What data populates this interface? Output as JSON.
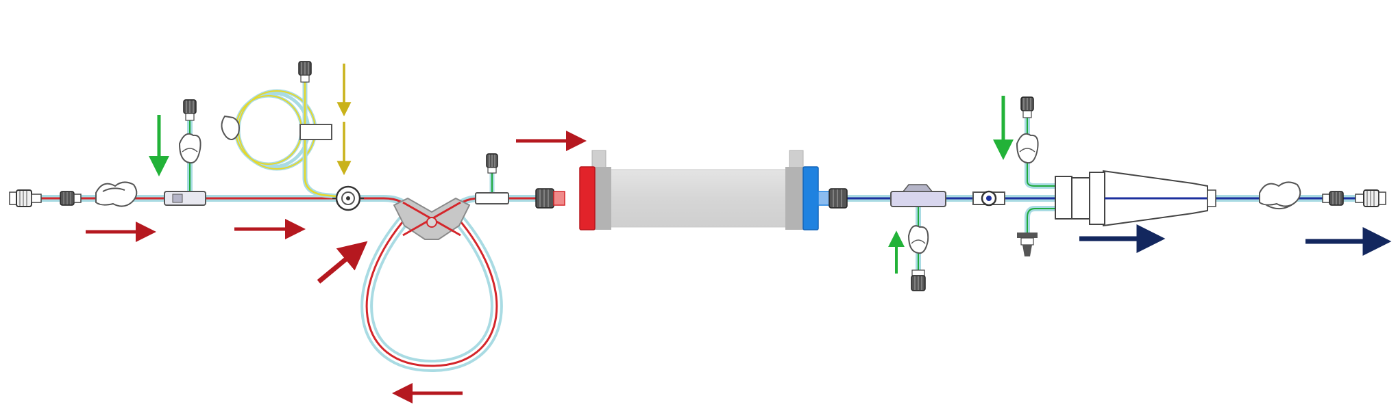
{
  "diagram": {
    "type": "extracorporeal blood tubing set schematic",
    "colors": {
      "arterial": "#d4262b",
      "venous": "#1c2f9e",
      "tube_outer": "#a9dbe3",
      "infusion": "#e6d82a",
      "infusion_line": "#1faa3c",
      "arrow_red": "#b5181f",
      "arrow_green": "#22b238",
      "arrow_yellow": "#c9b21a",
      "arrow_navy": "#13275e",
      "dialyzer_body": "#d8d8d8",
      "dialyzer_cap": "#b3b3b3",
      "arterial_header": "#e2232a",
      "venous_header": "#1f82e0",
      "connector": "#3a3a3a"
    },
    "dialyzer": {
      "label_left": "",
      "label_right": ""
    },
    "flow_arrows": [
      {
        "name": "arterial-inflow-arrow-1",
        "color": "red",
        "direction": "right"
      },
      {
        "name": "arterial-inflow-arrow-2",
        "color": "red",
        "direction": "right"
      },
      {
        "name": "pump-entry-arrow",
        "color": "red",
        "direction": "up-right"
      },
      {
        "name": "pump-loop-arrow",
        "color": "red",
        "direction": "left"
      },
      {
        "name": "dialyzer-inflow-arrow",
        "color": "red",
        "direction": "right"
      },
      {
        "name": "heparin-arrow",
        "color": "yellow",
        "direction": "down"
      },
      {
        "name": "arterial-infusion-arrow",
        "color": "green",
        "direction": "down"
      },
      {
        "name": "venous-infusion-arrow",
        "color": "green",
        "direction": "down"
      },
      {
        "name": "venous-sample-arrow",
        "color": "green",
        "direction": "up"
      },
      {
        "name": "venous-outflow-arrow-1",
        "color": "navy",
        "direction": "right"
      },
      {
        "name": "venous-outflow-arrow-2",
        "color": "navy",
        "direction": "right"
      }
    ],
    "icons": [
      "luer-connector-icon",
      "roller-clamp-icon",
      "injection-port-icon",
      "pressure-pod-icon",
      "pump-segment-icon",
      "heparin-coil-icon",
      "dialyzer-icon",
      "drip-chamber-icon",
      "transducer-protector-icon",
      "pinch-clamp-icon",
      "t-connector-icon"
    ]
  }
}
